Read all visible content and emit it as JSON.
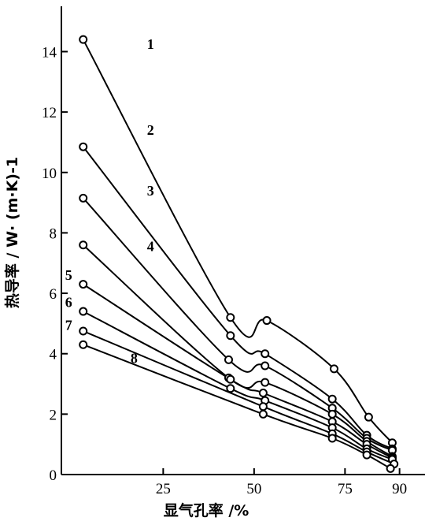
{
  "chart_data": {
    "type": "line",
    "title": "",
    "xlabel": "显气孔率 /%",
    "ylabel": "热导率 / W· (m·K)-1",
    "xlim": [
      -3,
      97
    ],
    "ylim": [
      0,
      15.5
    ],
    "x_ticks": [
      25,
      50,
      75,
      90
    ],
    "y_ticks": [
      0,
      2,
      4,
      6,
      8,
      10,
      12,
      14
    ],
    "grid": false,
    "legend": "none",
    "series": [
      {
        "name": "1",
        "points": [
          [
            3,
            14.4
          ],
          [
            43.5,
            5.2
          ],
          [
            53.5,
            5.1
          ],
          [
            72,
            3.5
          ],
          [
            81.5,
            1.9
          ],
          [
            88,
            1.05
          ]
        ]
      },
      {
        "name": "2",
        "points": [
          [
            3,
            10.85
          ],
          [
            43.5,
            4.6
          ],
          [
            53,
            4.0
          ],
          [
            71.5,
            2.5
          ],
          [
            81,
            1.3
          ],
          [
            88,
            0.85
          ]
        ]
      },
      {
        "name": "3",
        "points": [
          [
            3,
            9.15
          ],
          [
            43,
            3.8
          ],
          [
            53,
            3.6
          ],
          [
            71.5,
            2.2
          ],
          [
            81,
            1.2
          ],
          [
            88,
            0.8
          ]
        ]
      },
      {
        "name": "4",
        "points": [
          [
            3,
            7.6
          ],
          [
            43,
            3.2
          ],
          [
            53,
            3.05
          ],
          [
            71.5,
            2.0
          ],
          [
            81,
            1.1
          ],
          [
            88,
            0.6
          ]
        ]
      },
      {
        "name": "5",
        "points": [
          [
            3,
            6.3
          ],
          [
            43.5,
            3.15
          ],
          [
            52.5,
            2.7
          ],
          [
            71.5,
            1.75
          ],
          [
            81,
            1.0
          ],
          [
            88,
            0.55
          ]
        ]
      },
      {
        "name": "6",
        "points": [
          [
            3,
            5.4
          ],
          [
            43.5,
            2.85
          ],
          [
            53,
            2.45
          ],
          [
            71.5,
            1.55
          ],
          [
            81,
            0.85
          ],
          [
            88,
            0.5
          ]
        ]
      },
      {
        "name": "7",
        "points": [
          [
            3,
            4.75
          ],
          [
            52.5,
            2.25
          ],
          [
            71.5,
            1.35
          ],
          [
            81,
            0.75
          ],
          [
            88.5,
            0.35
          ]
        ]
      },
      {
        "name": "8",
        "points": [
          [
            3,
            4.3
          ],
          [
            52.5,
            2.0
          ],
          [
            71.5,
            1.2
          ],
          [
            81,
            0.65
          ],
          [
            87.5,
            0.2
          ]
        ]
      }
    ],
    "curve_labels": [
      {
        "text": "1",
        "x": 21.5,
        "y": 14.25
      },
      {
        "text": "2",
        "x": 21.5,
        "y": 11.4
      },
      {
        "text": "3",
        "x": 21.5,
        "y": 9.4
      },
      {
        "text": "4",
        "x": 21.5,
        "y": 7.55
      },
      {
        "text": "5",
        "x": -1,
        "y": 6.6
      },
      {
        "text": "6",
        "x": -1,
        "y": 5.7
      },
      {
        "text": "7",
        "x": -1,
        "y": 4.95
      },
      {
        "text": "8",
        "x": 17,
        "y": 3.85
      }
    ]
  }
}
